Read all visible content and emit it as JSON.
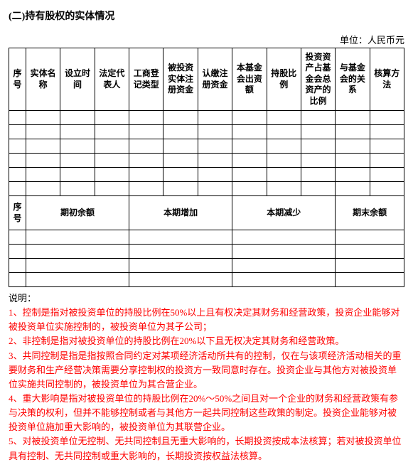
{
  "title": "(二)持有股权的实体情况",
  "unit_label": "单位：人民币元",
  "table1": {
    "headers": [
      "序号",
      "实体名称",
      "设立时间",
      "法定代表人",
      "工商登记类型",
      "被投资实体注册资金",
      "认缴注册资金",
      "本基金会出资额",
      "持股比例",
      "投资资产占基金会总资产的比例",
      "与基金会的关系",
      "核算方法"
    ]
  },
  "table2": {
    "headers": [
      "序号",
      "期初余额",
      "本期增加",
      "本期减少",
      "期末余额"
    ]
  },
  "notes_label": "说明：",
  "notes": [
    "1、控制是指对被投资单位的持股比例在50%以上且有权决定其财务和经营政策，投资企业能够对被投资单位实施控制的，被投资单位为其子公司；",
    "2、非控制是指对被投资单位的持股比例在20%以下且无权决定其财务和经营政策。",
    "3、共同控制是指是指按照合同约定对某项经济活动所共有的控制，仅在与该项经济活动相关的重要财务和生产经营决策需要分享控制权的投资方一致同意时存在。投资企业与其他方对被投资单位实施共同控制的，被投资单位为其合营企业。",
    "4、重大影响是指对被投资单位的持股比例在20%～50%之间且对一个企业的财务和经营政策有参与决策的权利，但并不能够控制或者与其他方一起共同控制这些政策的制定。投资企业能够对被投资单位施加重大影响的，被投资单位为其联营企业。",
    "5、对被投资单位无控制、无共同控制且无重大影响的，长期投资按成本法核算；若对被投资单位具有控制、无共同控制或重大影响的，长期投资按权益法核算。"
  ]
}
